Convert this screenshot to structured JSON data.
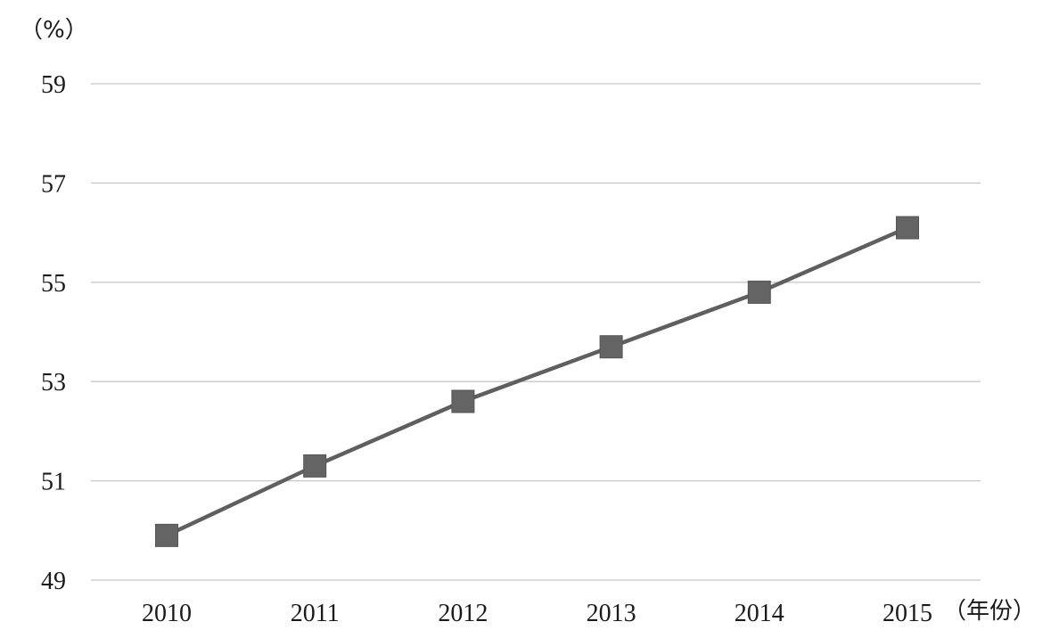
{
  "chart_data": {
    "type": "line",
    "title": "",
    "y_unit_label": "（%）",
    "x_unit_label": "（年份）",
    "ylim": [
      49,
      59
    ],
    "y_ticks": [
      49,
      51,
      53,
      55,
      57,
      59
    ],
    "y_tick_labels": [
      "49",
      "51",
      "53",
      "55",
      "57",
      "59"
    ],
    "categories": [
      "2010",
      "2011",
      "2012",
      "2013",
      "2014",
      "2015"
    ],
    "series": [
      {
        "values": [
          49.9,
          51.3,
          52.6,
          53.7,
          54.8,
          56.1
        ]
      }
    ],
    "grid": true,
    "marker": "square",
    "colors": {
      "line": "#5f5f5f",
      "marker": "#646464",
      "grid": "#c8c8c8"
    }
  }
}
